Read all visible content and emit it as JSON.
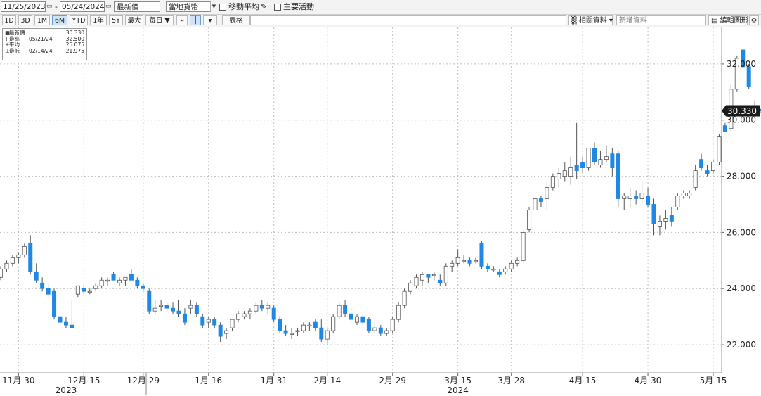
{
  "toolbar": {
    "date_from": "11/25/2023",
    "date_to": "05/24/2024",
    "price_type": "最新價",
    "currency": "當地貨幣",
    "moving_avg_label": "移動平均",
    "events_label": "主要活動"
  },
  "range_buttons": [
    "1D",
    "3D",
    "1M",
    "6M",
    "YTD",
    "1年",
    "5Y",
    "最大",
    "每日 ▼"
  ],
  "active_range": "6M",
  "table_button": "表格",
  "related_label": "相關資料",
  "add_data_label": "新增資料",
  "edit_chart_label": "編輯圖形",
  "legend": {
    "rows": [
      {
        "symbol": "■",
        "name": "最新價",
        "date": "",
        "value": "30.330"
      },
      {
        "symbol": "T",
        "name": "最高",
        "date": "05/21/24",
        "value": "32.500"
      },
      {
        "symbol": "+",
        "name": "平均",
        "date": "",
        "value": "25.075"
      },
      {
        "symbol": "⊥",
        "name": "最低",
        "date": "02/14/24",
        "value": "21.975"
      }
    ]
  },
  "colors": {
    "up": "#ffffff",
    "down": "#1e88e5",
    "wick": "#555555",
    "grid": "#bdbdbd",
    "last_tag": "#1a1a1a"
  },
  "chart_data": {
    "type": "candlestick",
    "last_value": "30.330",
    "ylim": [
      21,
      33.3
    ],
    "yticks": [
      "22.000",
      "24.000",
      "26.000",
      "28.000",
      "30.000",
      "32.000"
    ],
    "yticks_values": [
      22,
      24,
      26,
      28,
      30,
      32
    ],
    "grid": true,
    "xticks": [
      {
        "label": "11月 30",
        "index": 3
      },
      {
        "label": "12月 15",
        "index": 14
      },
      {
        "label": "12月 29",
        "index": 24
      },
      {
        "label": "1月 16",
        "index": 35
      },
      {
        "label": "1月 31",
        "index": 46
      },
      {
        "label": "2月 14",
        "index": 55
      },
      {
        "label": "2月 29",
        "index": 66
      },
      {
        "label": "3月 15",
        "index": 77
      },
      {
        "label": "3月 28",
        "index": 86
      },
      {
        "label": "4月 15",
        "index": 98
      },
      {
        "label": "4月 30",
        "index": 109
      },
      {
        "label": "5月 15",
        "index": 120
      }
    ],
    "year_labels": [
      {
        "label": "2023",
        "index": 11
      },
      {
        "label": "2024",
        "index": 77
      }
    ],
    "ohlc": [
      [
        24.4,
        24.8,
        24.3,
        24.7
      ],
      [
        24.7,
        25.0,
        24.6,
        24.9
      ],
      [
        24.9,
        25.2,
        24.8,
        25.1
      ],
      [
        25.1,
        25.3,
        24.9,
        25.2
      ],
      [
        25.2,
        25.6,
        25.1,
        25.5
      ],
      [
        25.6,
        25.9,
        24.5,
        24.6
      ],
      [
        24.6,
        24.9,
        24.2,
        24.3
      ],
      [
        24.2,
        24.4,
        23.9,
        24.0
      ],
      [
        24.0,
        24.2,
        23.7,
        23.8
      ],
      [
        23.9,
        24.0,
        22.9,
        23.0
      ],
      [
        23.0,
        23.2,
        22.7,
        22.8
      ],
      [
        22.8,
        23.0,
        22.6,
        22.7
      ],
      [
        22.7,
        23.6,
        22.6,
        22.6
      ],
      [
        23.8,
        24.1,
        23.7,
        24.1
      ],
      [
        24.0,
        24.1,
        23.8,
        23.9
      ],
      [
        23.9,
        24.0,
        23.8,
        23.9
      ],
      [
        24.0,
        24.2,
        23.9,
        24.1
      ],
      [
        24.1,
        24.4,
        24.0,
        24.3
      ],
      [
        24.3,
        24.4,
        24.1,
        24.3
      ],
      [
        24.5,
        24.6,
        24.3,
        24.3
      ],
      [
        24.2,
        24.4,
        24.1,
        24.3
      ],
      [
        24.3,
        24.4,
        24.1,
        24.4
      ],
      [
        24.5,
        24.7,
        24.3,
        24.3
      ],
      [
        24.3,
        24.4,
        24.0,
        24.1
      ],
      [
        24.1,
        24.2,
        23.9,
        24.0
      ],
      [
        23.9,
        24.0,
        23.1,
        23.2
      ],
      [
        23.2,
        23.6,
        23.1,
        23.3
      ],
      [
        23.4,
        23.6,
        23.2,
        23.4
      ],
      [
        23.4,
        23.5,
        23.2,
        23.3
      ],
      [
        23.3,
        23.5,
        23.1,
        23.2
      ],
      [
        23.2,
        23.6,
        23.0,
        23.1
      ],
      [
        23.1,
        23.3,
        22.7,
        22.8
      ],
      [
        23.3,
        23.6,
        23.1,
        23.4
      ],
      [
        23.4,
        23.5,
        23.0,
        23.1
      ],
      [
        23.0,
        23.1,
        22.6,
        22.7
      ],
      [
        22.8,
        23.0,
        22.6,
        22.9
      ],
      [
        22.9,
        23.0,
        22.6,
        22.7
      ],
      [
        22.7,
        22.8,
        22.1,
        22.3
      ],
      [
        22.4,
        22.6,
        22.2,
        22.5
      ],
      [
        22.6,
        22.9,
        22.5,
        22.9
      ],
      [
        22.9,
        23.2,
        22.8,
        23.1
      ],
      [
        23.0,
        23.2,
        22.9,
        23.1
      ],
      [
        23.1,
        23.3,
        22.9,
        23.2
      ],
      [
        23.2,
        23.5,
        23.1,
        23.4
      ],
      [
        23.4,
        23.6,
        23.2,
        23.3
      ],
      [
        23.3,
        23.5,
        23.1,
        23.4
      ],
      [
        23.3,
        23.4,
        22.8,
        22.9
      ],
      [
        22.9,
        23.0,
        22.4,
        22.5
      ],
      [
        22.5,
        22.7,
        22.3,
        22.4
      ],
      [
        22.4,
        22.6,
        22.2,
        22.4
      ],
      [
        22.5,
        22.6,
        22.3,
        22.5
      ],
      [
        22.5,
        22.8,
        22.4,
        22.7
      ],
      [
        22.7,
        22.8,
        22.5,
        22.7
      ],
      [
        22.8,
        22.9,
        22.5,
        22.6
      ],
      [
        22.6,
        22.9,
        22.1,
        22.2
      ],
      [
        22.2,
        22.6,
        22.0,
        22.5
      ],
      [
        22.5,
        23.1,
        22.4,
        23.0
      ],
      [
        23.0,
        23.5,
        22.9,
        23.4
      ],
      [
        23.4,
        23.6,
        23.0,
        23.1
      ],
      [
        23.1,
        23.2,
        22.8,
        22.9
      ],
      [
        22.8,
        23.1,
        22.7,
        23.0
      ],
      [
        23.0,
        23.1,
        22.7,
        22.8
      ],
      [
        22.9,
        23.0,
        22.4,
        22.5
      ],
      [
        22.5,
        22.8,
        22.4,
        22.6
      ],
      [
        22.6,
        22.7,
        22.3,
        22.4
      ],
      [
        22.4,
        22.6,
        22.3,
        22.5
      ],
      [
        22.5,
        23.0,
        22.4,
        22.9
      ],
      [
        22.9,
        23.5,
        22.8,
        23.4
      ],
      [
        23.4,
        24.0,
        23.3,
        23.9
      ],
      [
        23.9,
        24.3,
        23.8,
        24.2
      ],
      [
        24.1,
        24.5,
        24.0,
        24.4
      ],
      [
        24.3,
        24.6,
        24.1,
        24.5
      ],
      [
        24.5,
        24.5,
        24.2,
        24.4
      ],
      [
        24.5,
        24.6,
        24.3,
        24.5
      ],
      [
        24.3,
        24.5,
        24.1,
        24.2
      ],
      [
        24.2,
        24.9,
        24.1,
        24.8
      ],
      [
        24.8,
        25.0,
        24.6,
        24.9
      ],
      [
        24.9,
        25.4,
        24.8,
        25.1
      ],
      [
        25.0,
        25.2,
        24.9,
        25.0
      ],
      [
        25.0,
        25.1,
        24.8,
        24.9
      ],
      [
        25.0,
        25.1,
        24.9,
        25.0
      ],
      [
        25.6,
        25.7,
        24.7,
        24.8
      ],
      [
        24.8,
        24.9,
        24.6,
        24.7
      ],
      [
        24.7,
        24.8,
        24.6,
        24.7
      ],
      [
        24.6,
        24.7,
        24.4,
        24.5
      ],
      [
        24.6,
        24.8,
        24.5,
        24.7
      ],
      [
        24.7,
        25.0,
        24.6,
        24.9
      ],
      [
        24.9,
        25.1,
        24.8,
        25.0
      ],
      [
        25.0,
        26.1,
        24.9,
        26.0
      ],
      [
        26.1,
        26.9,
        26.0,
        26.8
      ],
      [
        26.8,
        27.4,
        26.5,
        27.2
      ],
      [
        27.2,
        27.3,
        26.9,
        27.1
      ],
      [
        27.2,
        27.8,
        26.8,
        27.6
      ],
      [
        27.6,
        28.1,
        27.5,
        28.0
      ],
      [
        27.9,
        28.3,
        27.6,
        28.1
      ],
      [
        28.0,
        28.5,
        27.8,
        28.2
      ],
      [
        28.0,
        28.7,
        27.7,
        28.3
      ],
      [
        28.4,
        29.9,
        27.9,
        28.2
      ],
      [
        28.5,
        28.7,
        28.1,
        28.3
      ],
      [
        28.3,
        29.0,
        28.2,
        29.0
      ],
      [
        29.0,
        29.2,
        28.4,
        28.5
      ],
      [
        28.4,
        28.9,
        28.3,
        28.6
      ],
      [
        28.6,
        29.1,
        28.5,
        28.7
      ],
      [
        28.8,
        29.0,
        28.0,
        28.3
      ],
      [
        28.8,
        28.9,
        26.9,
        27.2
      ],
      [
        27.2,
        27.4,
        26.8,
        27.3
      ],
      [
        27.2,
        27.6,
        26.9,
        27.3
      ],
      [
        27.3,
        27.5,
        27.0,
        27.2
      ],
      [
        27.2,
        27.8,
        27.0,
        27.4
      ],
      [
        27.3,
        27.6,
        26.9,
        27.0
      ],
      [
        27.0,
        27.2,
        25.9,
        26.3
      ],
      [
        26.2,
        26.6,
        25.9,
        26.4
      ],
      [
        26.4,
        26.8,
        26.1,
        26.5
      ],
      [
        26.6,
        26.9,
        26.2,
        26.4
      ],
      [
        26.9,
        27.4,
        26.8,
        27.3
      ],
      [
        27.3,
        27.5,
        27.2,
        27.4
      ],
      [
        27.3,
        27.5,
        27.2,
        27.4
      ],
      [
        27.6,
        28.4,
        27.5,
        28.2
      ],
      [
        28.6,
        28.8,
        28.2,
        28.3
      ],
      [
        28.2,
        28.4,
        28.0,
        28.1
      ],
      [
        28.2,
        28.6,
        28.1,
        28.5
      ],
      [
        28.5,
        29.5,
        28.4,
        29.4
      ],
      [
        29.8,
        29.9,
        29.6,
        29.6
      ],
      [
        29.7,
        31.3,
        29.6,
        31.1
      ],
      [
        31.1,
        32.3,
        31.0,
        32.2
      ],
      [
        32.5,
        32.5,
        32.0,
        31.9
      ],
      [
        31.9,
        32.0,
        31.1,
        31.2
      ],
      [
        30.3,
        30.7,
        30.2,
        30.3
      ],
      [
        30.33,
        30.4,
        30.3,
        30.33
      ]
    ]
  }
}
